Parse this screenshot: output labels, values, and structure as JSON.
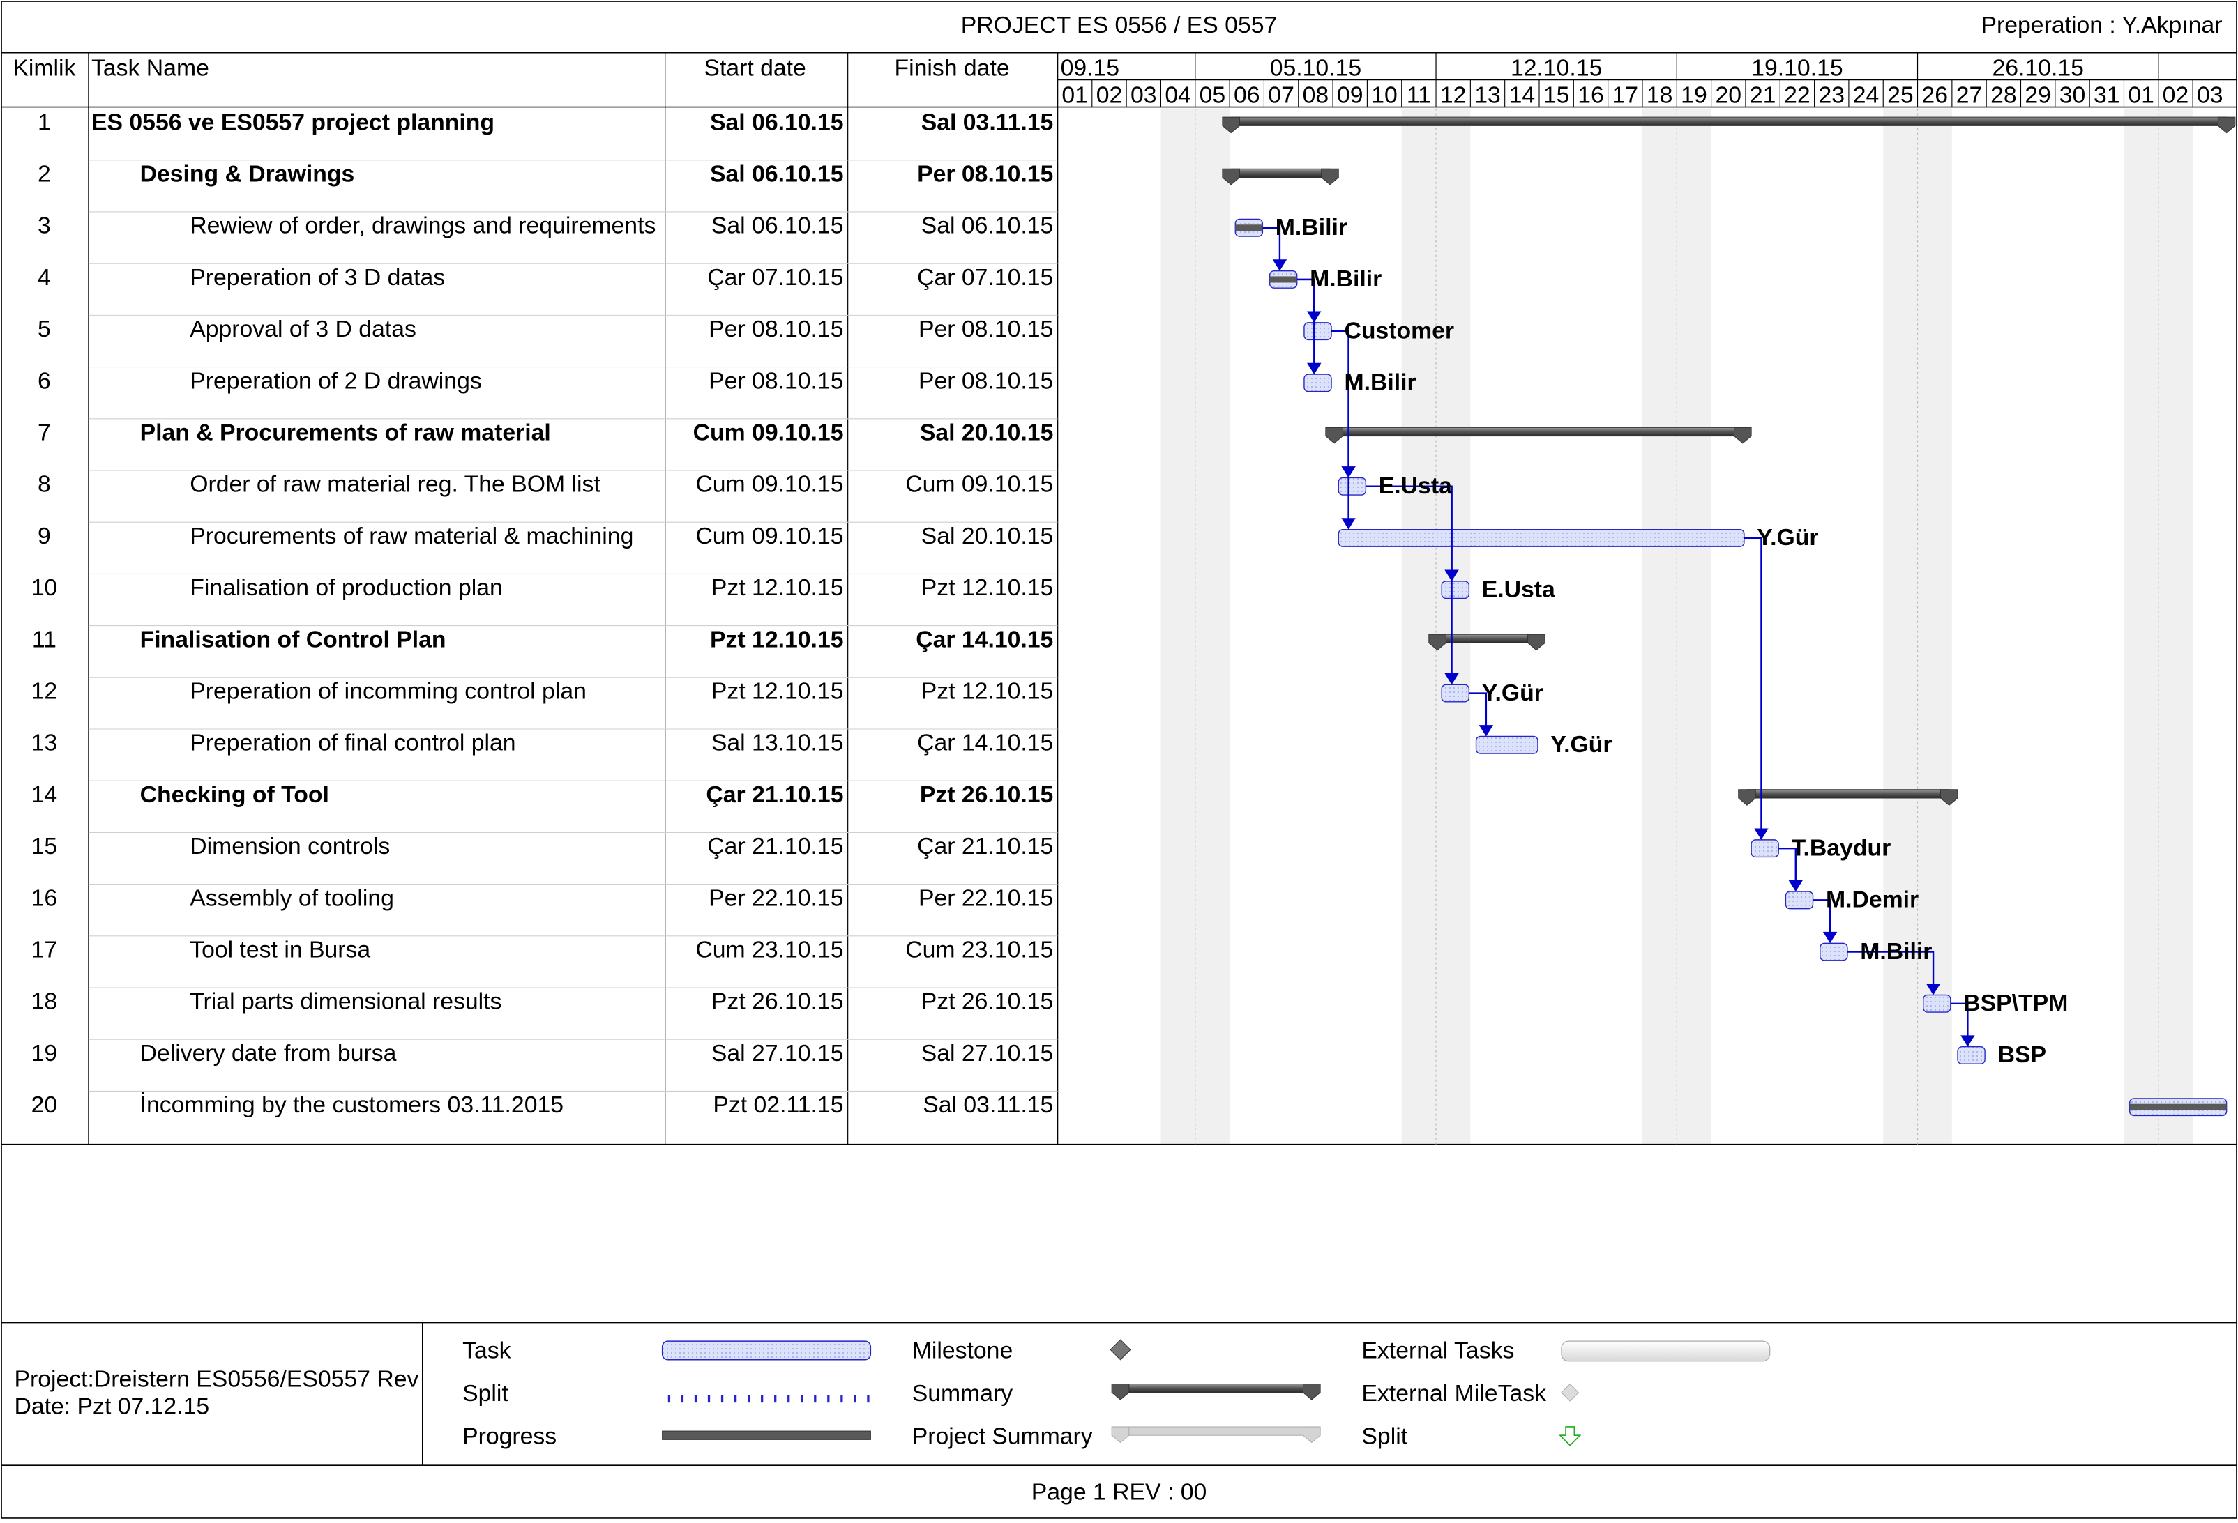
{
  "header": {
    "title": "PROJECT ES 0556 / ES 0557",
    "preparation": "Preperation : Y.Akpınar"
  },
  "columns": {
    "id": "Kimlik",
    "name": "Task Name",
    "start": "Start date",
    "finish": "Finish date"
  },
  "timescale": {
    "weeks": [
      "09.15",
      "05.10.15",
      "12.10.15",
      "19.10.15",
      "26.10.15"
    ],
    "days": [
      "01",
      "02",
      "03",
      "04",
      "05",
      "06",
      "07",
      "08",
      "09",
      "10",
      "11",
      "12",
      "13",
      "14",
      "15",
      "16",
      "17",
      "18",
      "19",
      "20",
      "21",
      "22",
      "23",
      "24",
      "25",
      "26",
      "27",
      "28",
      "29",
      "30",
      "31",
      "01",
      "02",
      "03"
    ]
  },
  "tasks": [
    {
      "id": "1",
      "name": "ES 0556 ve ES0557 project planning",
      "start": "Sal 06.10.15",
      "finish": "Sal 03.11.15",
      "bold": true,
      "indent": 0,
      "type": "project",
      "s": 6,
      "e": 34
    },
    {
      "id": "2",
      "name": "Desing & Drawings",
      "start": "Sal 06.10.15",
      "finish": "Per 08.10.15",
      "bold": true,
      "indent": 1,
      "type": "summary",
      "s": 6,
      "e": 9
    },
    {
      "id": "3",
      "name": "Rewiew of order, drawings and requirements",
      "start": "Sal 06.10.15",
      "finish": "Sal 06.10.15",
      "bold": false,
      "indent": 2,
      "type": "task",
      "s": 6,
      "e": 7,
      "resource": "M.Bilir",
      "progress": 1
    },
    {
      "id": "4",
      "name": "Preperation of 3 D datas",
      "start": "Çar 07.10.15",
      "finish": "Çar 07.10.15",
      "bold": false,
      "indent": 2,
      "type": "task",
      "s": 7,
      "e": 8,
      "resource": "M.Bilir",
      "progress": 1
    },
    {
      "id": "5",
      "name": "Approval of 3 D datas",
      "start": "Per 08.10.15",
      "finish": "Per 08.10.15",
      "bold": false,
      "indent": 2,
      "type": "task",
      "s": 8,
      "e": 9,
      "resource": "Customer",
      "progress": 0
    },
    {
      "id": "6",
      "name": "Preperation of 2 D drawings",
      "start": "Per 08.10.15",
      "finish": "Per 08.10.15",
      "bold": false,
      "indent": 2,
      "type": "task",
      "s": 8,
      "e": 9,
      "resource": "M.Bilir",
      "progress": 0
    },
    {
      "id": "7",
      "name": "Plan & Procurements of raw material",
      "start": "Cum 09.10.15",
      "finish": "Sal 20.10.15",
      "bold": true,
      "indent": 1,
      "type": "summary",
      "s": 9,
      "e": 21
    },
    {
      "id": "8",
      "name": "Order of raw material reg.  The BOM list",
      "start": "Cum 09.10.15",
      "finish": "Cum 09.10.15",
      "bold": false,
      "indent": 2,
      "type": "task",
      "s": 9,
      "e": 10,
      "resource": "E.Usta",
      "progress": 0
    },
    {
      "id": "9",
      "name": "Procurements of raw material & machining",
      "start": "Cum 09.10.15",
      "finish": "Sal 20.10.15",
      "bold": false,
      "indent": 2,
      "type": "task",
      "s": 9,
      "e": 21,
      "resource": "Y.Gür",
      "progress": 0
    },
    {
      "id": "10",
      "name": "Finalisation of production plan",
      "start": "Pzt 12.10.15",
      "finish": "Pzt 12.10.15",
      "bold": false,
      "indent": 2,
      "type": "task",
      "s": 12,
      "e": 13,
      "resource": "E.Usta",
      "progress": 0
    },
    {
      "id": "11",
      "name": "Finalisation  of Control Plan",
      "start": "Pzt 12.10.15",
      "finish": "Çar 14.10.15",
      "bold": true,
      "indent": 1,
      "type": "summary",
      "s": 12,
      "e": 15
    },
    {
      "id": "12",
      "name": "Preperation of incomming control plan",
      "start": "Pzt 12.10.15",
      "finish": "Pzt 12.10.15",
      "bold": false,
      "indent": 2,
      "type": "task",
      "s": 12,
      "e": 13,
      "resource": "Y.Gür",
      "progress": 0
    },
    {
      "id": "13",
      "name": "Preperation of final control plan",
      "start": "Sal 13.10.15",
      "finish": "Çar 14.10.15",
      "bold": false,
      "indent": 2,
      "type": "task",
      "s": 13,
      "e": 15,
      "resource": "Y.Gür",
      "progress": 0
    },
    {
      "id": "14",
      "name": "Checking of Tool",
      "start": "Çar 21.10.15",
      "finish": "Pzt 26.10.15",
      "bold": true,
      "indent": 1,
      "type": "summary",
      "s": 21,
      "e": 27
    },
    {
      "id": "15",
      "name": "Dimension controls",
      "start": "Çar 21.10.15",
      "finish": "Çar 21.10.15",
      "bold": false,
      "indent": 2,
      "type": "task",
      "s": 21,
      "e": 22,
      "resource": "T.Baydur",
      "progress": 0
    },
    {
      "id": "16",
      "name": "Assembly of tooling",
      "start": "Per 22.10.15",
      "finish": "Per 22.10.15",
      "bold": false,
      "indent": 2,
      "type": "task",
      "s": 22,
      "e": 23,
      "resource": "M.Demir",
      "progress": 0
    },
    {
      "id": "17",
      "name": "Tool test in Bursa",
      "start": "Cum 23.10.15",
      "finish": "Cum 23.10.15",
      "bold": false,
      "indent": 2,
      "type": "task",
      "s": 23,
      "e": 24,
      "resource": "M.Bilir",
      "progress": 0
    },
    {
      "id": "18",
      "name": "Trial parts dimensional results",
      "start": "Pzt 26.10.15",
      "finish": "Pzt 26.10.15",
      "bold": false,
      "indent": 2,
      "type": "task",
      "s": 26,
      "e": 27,
      "resource": "BSP\\TPM",
      "progress": 0
    },
    {
      "id": "19",
      "name": "Delivery date from bursa",
      "start": "Sal 27.10.15",
      "finish": "Sal 27.10.15",
      "bold": false,
      "indent": 1,
      "type": "task",
      "s": 27,
      "e": 28,
      "resource": "BSP",
      "progress": 0
    },
    {
      "id": "20",
      "name": "İncomming by the customers 03.11.2015",
      "start": "Pzt 02.11.15",
      "finish": "Sal 03.11.15",
      "bold": false,
      "indent": 1,
      "type": "task",
      "s": 32,
      "e": 34,
      "resource": "",
      "progress": 1
    }
  ],
  "links": [
    [
      3,
      4
    ],
    [
      4,
      5
    ],
    [
      4,
      6
    ],
    [
      5,
      8
    ],
    [
      5,
      9
    ],
    [
      8,
      10
    ],
    [
      8,
      12
    ],
    [
      12,
      13
    ],
    [
      9,
      15
    ],
    [
      15,
      16
    ],
    [
      16,
      17
    ],
    [
      17,
      18
    ],
    [
      18,
      19
    ]
  ],
  "legend": {
    "task": "Task",
    "split": "Split",
    "progress": "Progress",
    "milestone": "Milestone",
    "summary": "Summary",
    "project_summary": "Project Summary",
    "external_tasks": "External Tasks",
    "external_milestask": "External MileTask",
    "split2": "Split"
  },
  "footer": {
    "project": "Project:Dreistern ES0556/ES0557 Rev",
    "date": "Date: Pzt 07.12.15",
    "page": "Page 1 REV : 00"
  },
  "colors": {
    "task_fill": "#dde2fb",
    "task_stroke": "#2626c8",
    "link": "#0000cc",
    "summary": "#606060",
    "weekend": "#f0f0f0"
  }
}
